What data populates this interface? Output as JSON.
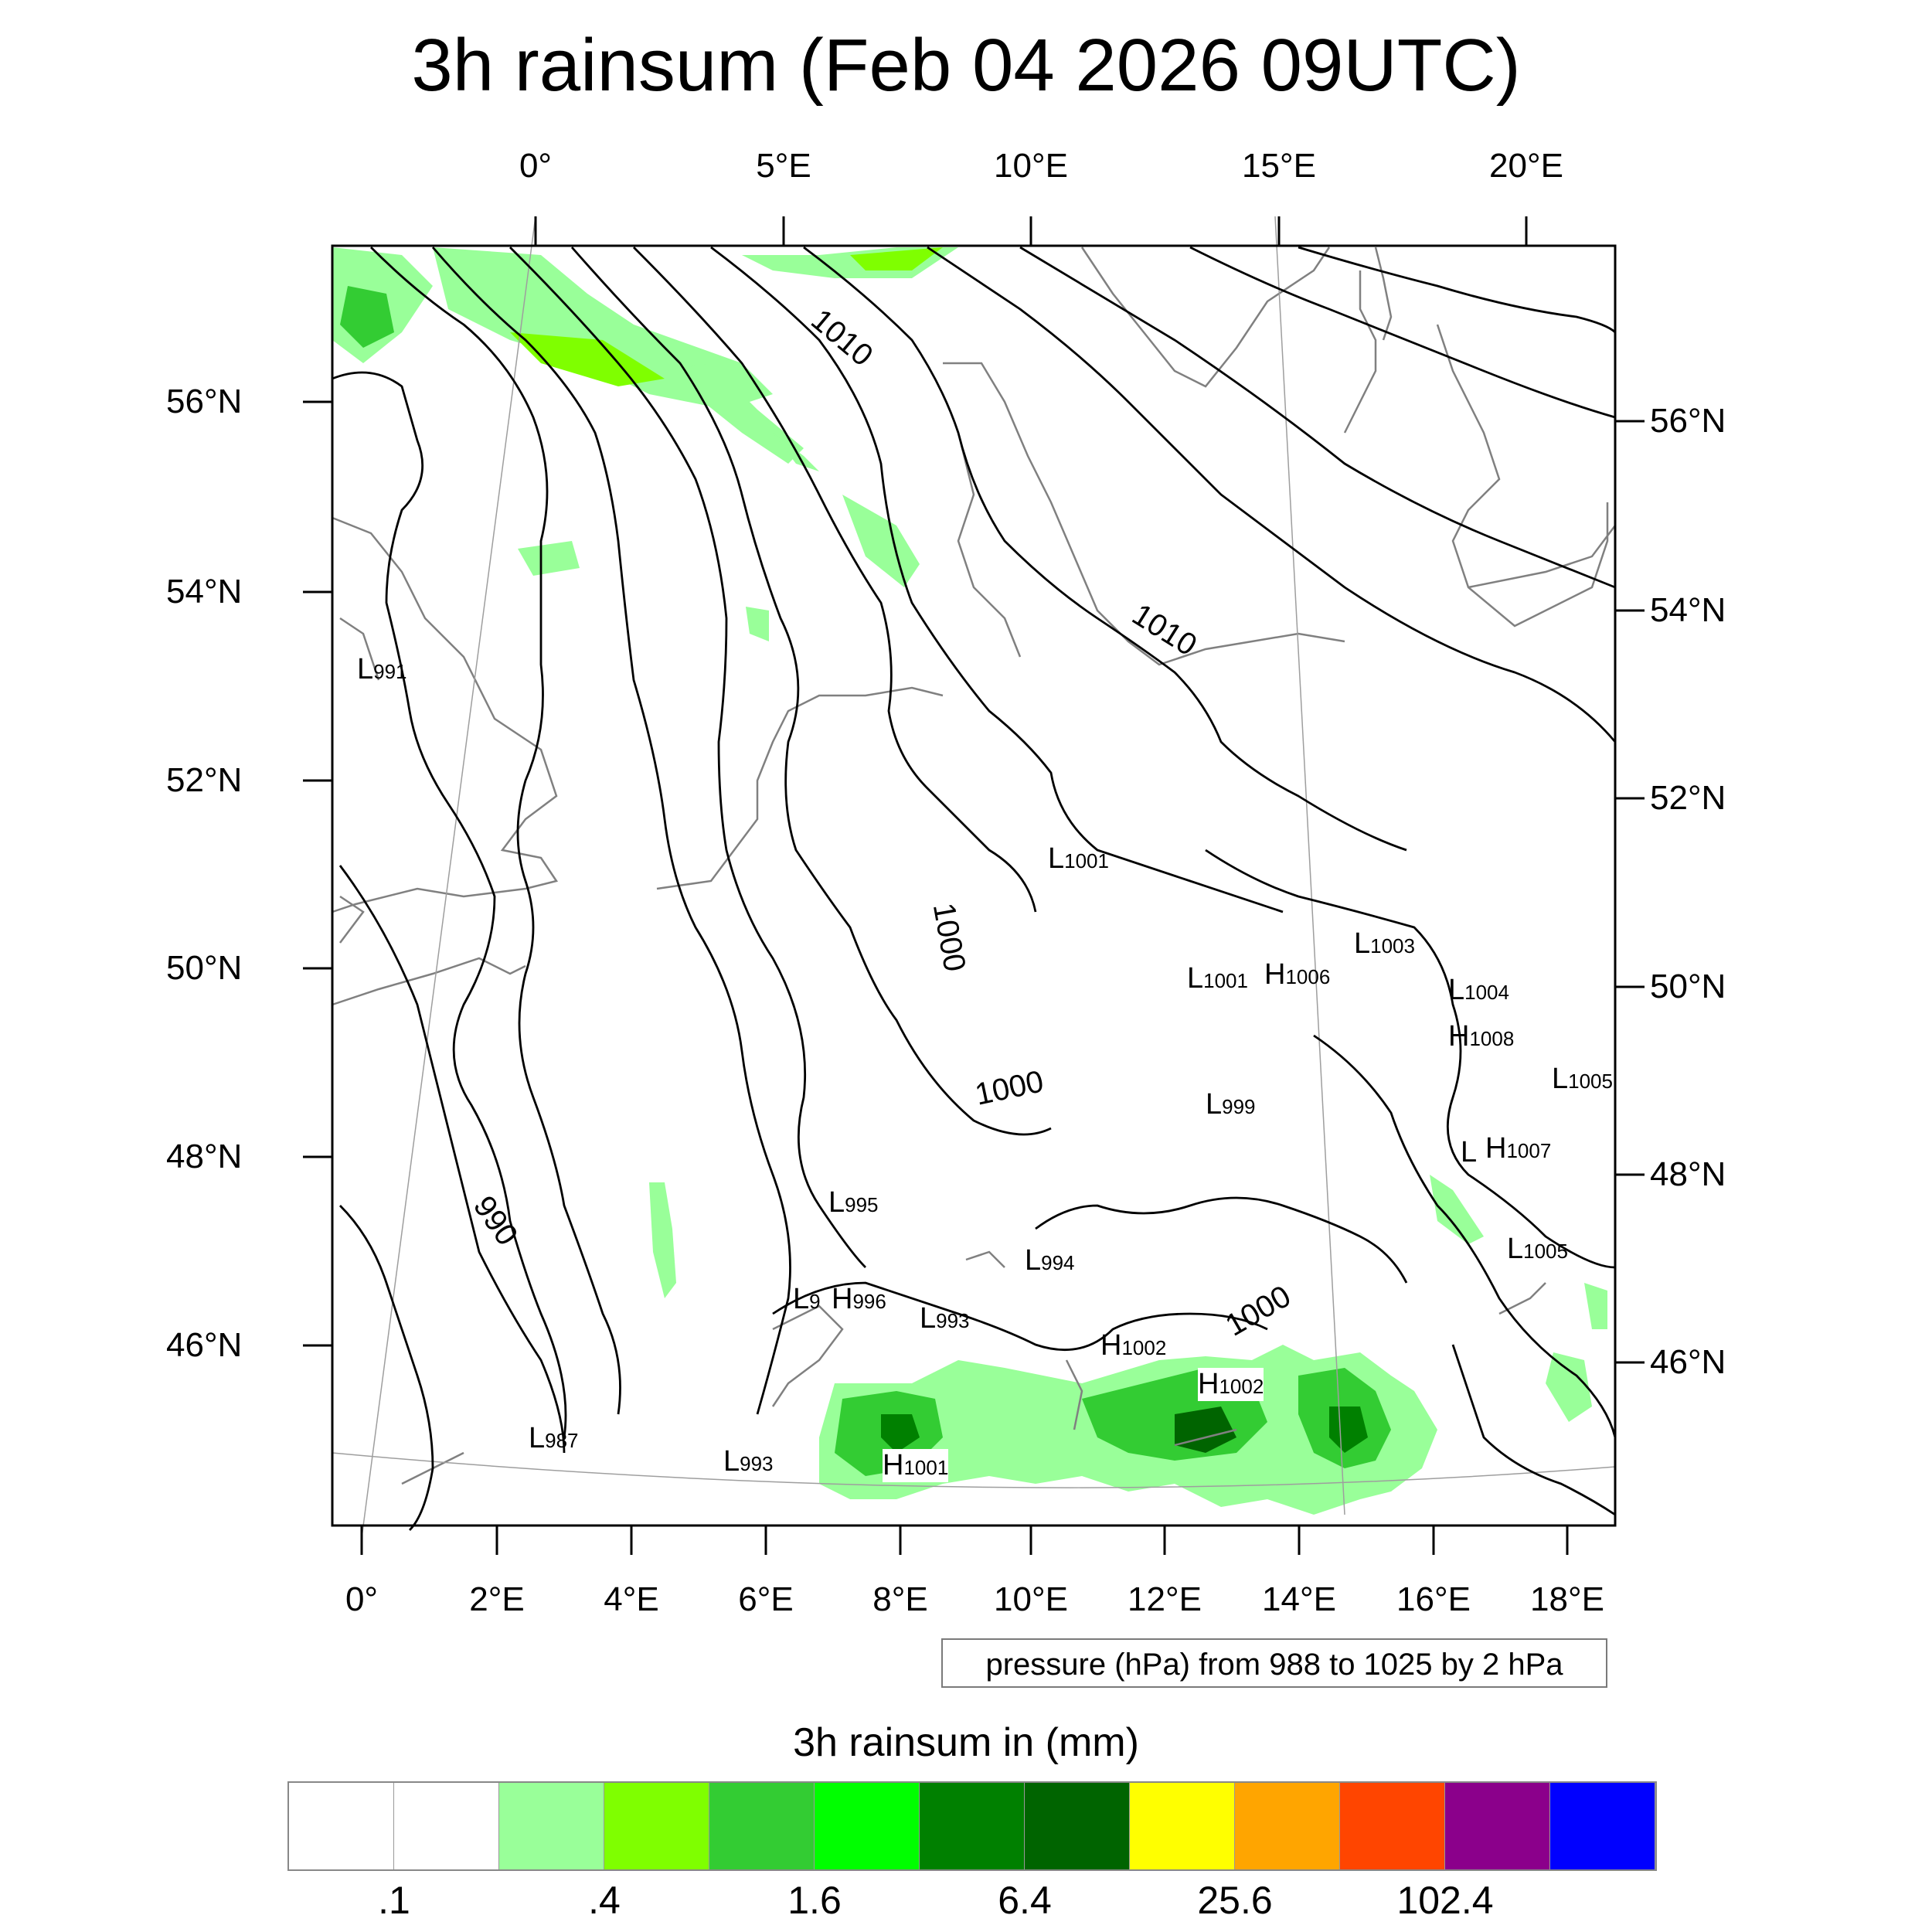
{
  "title": "3h rainsum (Feb 04 2026 09UTC)",
  "map": {
    "top_lon_labels": [
      "0°",
      "5°E",
      "10°E",
      "15°E",
      "20°E"
    ],
    "bottom_lon_labels": [
      "0°",
      "2°E",
      "4°E",
      "6°E",
      "8°E",
      "10°E",
      "12°E",
      "14°E",
      "16°E",
      "18°E"
    ],
    "left_lat_labels": [
      "56°N",
      "54°N",
      "52°N",
      "50°N",
      "48°N",
      "46°N"
    ],
    "right_lat_labels": [
      "56°N",
      "54°N",
      "52°N",
      "50°N",
      "48°N",
      "46°N"
    ],
    "contour_labels": [
      "1010",
      "1010",
      "1000",
      "1000",
      "1000",
      "990"
    ],
    "pressure_centers": [
      {
        "type": "L",
        "value": "991"
      },
      {
        "type": "L",
        "value": "1001"
      },
      {
        "type": "L",
        "value": "1003"
      },
      {
        "type": "L",
        "value": "1001"
      },
      {
        "type": "H",
        "value": "1006"
      },
      {
        "type": "L",
        "value": "1004"
      },
      {
        "type": "H",
        "value": "1008"
      },
      {
        "type": "L",
        "value": "1005"
      },
      {
        "type": "L",
        "value": "999"
      },
      {
        "type": "L",
        "value": ""
      },
      {
        "type": "H",
        "value": "1007"
      },
      {
        "type": "L",
        "value": "995"
      },
      {
        "type": "L",
        "value": "994"
      },
      {
        "type": "L",
        "value": "1005"
      },
      {
        "type": "L",
        "value": "9"
      },
      {
        "type": "H",
        "value": "996"
      },
      {
        "type": "L",
        "value": "993"
      },
      {
        "type": "H",
        "value": "1002"
      },
      {
        "type": "H",
        "value": "1002"
      },
      {
        "type": "L",
        "value": "987"
      },
      {
        "type": "L",
        "value": "993"
      },
      {
        "type": "H",
        "value": "1001"
      }
    ]
  },
  "info_box": "pressure (hPa) from 988 to 1025 by 2 hPa",
  "colorbar": {
    "title": "3h rainsum in (mm)",
    "colors": [
      "#ffffff",
      "#ffffff",
      "#99ff99",
      "#7fff00",
      "#33cc33",
      "#00ff00",
      "#008000",
      "#006400",
      "#ffff00",
      "#ffa500",
      "#ff4500",
      "#8b008b",
      "#0000ff"
    ],
    "labels": [
      ".1",
      ".4",
      "1.6",
      "6.4",
      "25.6",
      "102.4"
    ]
  }
}
